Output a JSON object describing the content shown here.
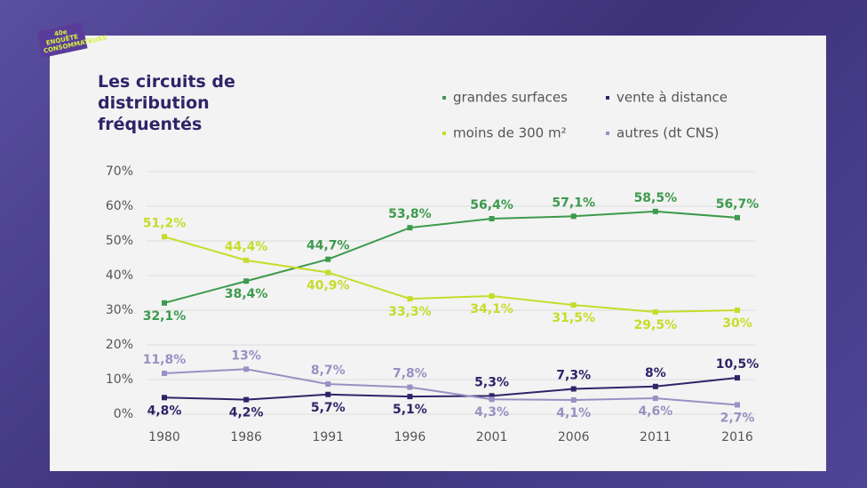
{
  "logo": "40e ENQUÊTE CONSOMMATEURS",
  "chart_data": {
    "type": "line",
    "title": "Les circuits de distribution fréquentés",
    "categories": [
      "1980",
      "1986",
      "1991",
      "1996",
      "2001",
      "2006",
      "2011",
      "2016"
    ],
    "ylim": [
      0,
      70
    ],
    "yticks": [
      {
        "value": 0,
        "label": "0%"
      },
      {
        "value": 10,
        "label": "10%"
      },
      {
        "value": 20,
        "label": "20%"
      },
      {
        "value": 30,
        "label": "30%"
      },
      {
        "value": 40,
        "label": "40%"
      },
      {
        "value": 50,
        "label": "50%"
      },
      {
        "value": 60,
        "label": "60%"
      },
      {
        "value": 70,
        "label": "70%"
      }
    ],
    "grid": true,
    "series": [
      {
        "name": "grandes surfaces",
        "color": "#3c9a4c",
        "values": [
          32.1,
          38.4,
          44.7,
          53.8,
          56.4,
          57.1,
          58.5,
          56.7
        ],
        "value_labels": [
          "32,1%",
          "38,4%",
          "44,7%",
          "53,8%",
          "56,4%",
          "57,1%",
          "58,5%",
          "56,7%"
        ]
      },
      {
        "name": "vente à distance",
        "color": "#2e2468",
        "values": [
          4.8,
          4.2,
          5.7,
          5.1,
          5.3,
          7.3,
          8,
          10.5
        ],
        "value_labels": [
          "4,8%",
          "4,2%",
          "5,7%",
          "5,1%",
          "5,3%",
          "7,3%",
          "8%",
          "10,5%"
        ]
      },
      {
        "name": "moins de 300 m²",
        "color": "#c6dc2a",
        "values": [
          51.2,
          44.4,
          40.9,
          33.3,
          34.1,
          31.5,
          29.5,
          30
        ],
        "value_labels": [
          "51,2%",
          "44,4%",
          "40,9%",
          "33,3%",
          "34,1%",
          "31,5%",
          "29,5%",
          "30%"
        ]
      },
      {
        "name": "autres (dt CNS)",
        "color": "#9a90c2",
        "values": [
          11.8,
          13,
          8.7,
          7.8,
          4.3,
          4.1,
          4.6,
          2.7
        ],
        "value_labels": [
          "11,8%",
          "13%",
          "8,7%",
          "7,8%",
          "4,3%",
          "4,1%",
          "4,6%",
          "2,7%"
        ]
      }
    ]
  }
}
